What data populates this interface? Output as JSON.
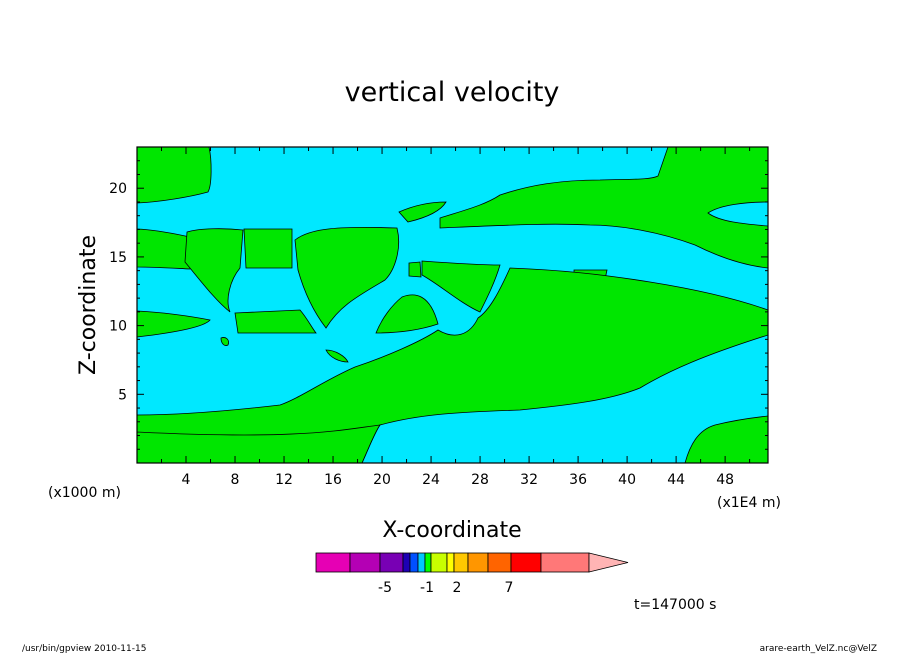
{
  "chart_data": {
    "type": "heatmap",
    "title": "vertical velocity",
    "xlabel": "X-coordinate",
    "ylabel": "Z-coordinate",
    "x_unit_left": "(x1000 m)",
    "x_unit_right": "(x1E4 m)",
    "xlim": [
      0,
      51.5
    ],
    "ylim": [
      0,
      23
    ],
    "x_ticks": [
      "4",
      "8",
      "12",
      "16",
      "20",
      "24",
      "28",
      "32",
      "36",
      "40",
      "44",
      "48"
    ],
    "x_tick_values": [
      4,
      8,
      12,
      16,
      20,
      24,
      28,
      32,
      36,
      40,
      44,
      48
    ],
    "y_ticks": [
      "5",
      "10",
      "15",
      "20"
    ],
    "y_tick_values": [
      5,
      10,
      15,
      20
    ],
    "fill_colors": {
      "negative": "#00e8ff",
      "positive": "#00e600"
    },
    "colorbar": {
      "colors": [
        "#e600b4",
        "#b400b4",
        "#7800b4",
        "#1e00b4",
        "#0050ff",
        "#00c8ff",
        "#00ff00",
        "#c8ff00",
        "#ffff00",
        "#ffc800",
        "#ff9600",
        "#ff6400",
        "#ff0000",
        "#ff7878",
        "#ffb4b4"
      ],
      "labels": [
        "-5",
        "-1",
        "2",
        "7"
      ]
    },
    "time_label": "t=147000 s",
    "footer_left": "/usr/bin/gpview  2010-11-15",
    "footer_right": "arare-earth_VelZ.nc@VelZ"
  }
}
